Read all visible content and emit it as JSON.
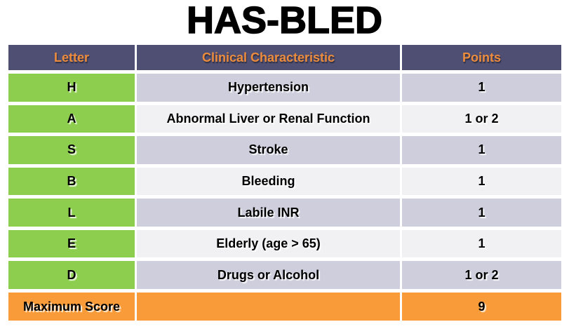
{
  "title": "HAS-BLED",
  "colors": {
    "header_bg": "#4F4F73",
    "header_text": "#EC8C3C",
    "letter_bg": "#8DCE4E",
    "row_odd_bg": "#CECEDC",
    "row_even_bg": "#F1F1F4",
    "total_bg": "#F99B38",
    "text": "#000000",
    "background": "#FFFFFF"
  },
  "table": {
    "headers": [
      "Letter",
      "Clinical Characteristic",
      "Points"
    ],
    "rows": [
      {
        "letter": "H",
        "characteristic": "Hypertension",
        "points": "1"
      },
      {
        "letter": "A",
        "characteristic": "Abnormal Liver or Renal Function",
        "points": "1 or 2"
      },
      {
        "letter": "S",
        "characteristic": "Stroke",
        "points": "1"
      },
      {
        "letter": "B",
        "characteristic": "Bleeding",
        "points": "1"
      },
      {
        "letter": "L",
        "characteristic": "Labile INR",
        "points": "1"
      },
      {
        "letter": "E",
        "characteristic": "Elderly (age > 65)",
        "points": "1"
      },
      {
        "letter": "D",
        "characteristic": "Drugs or Alcohol",
        "points": "1 or 2"
      }
    ],
    "footer": {
      "label": "Maximum Score",
      "characteristic": "",
      "points": "9"
    }
  }
}
